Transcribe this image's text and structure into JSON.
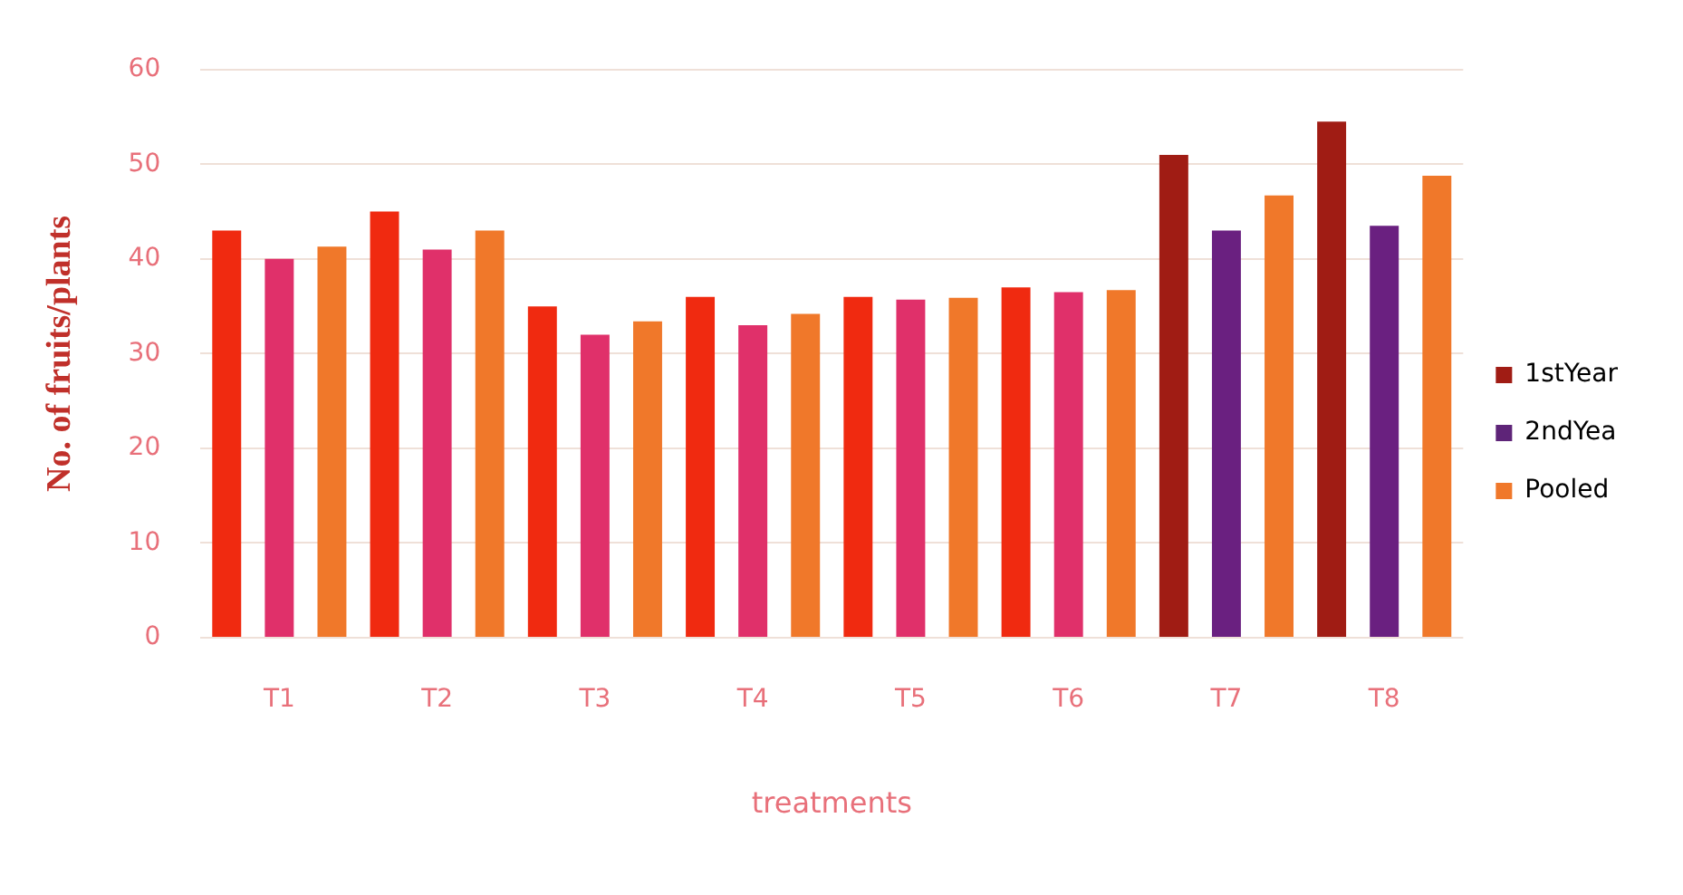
{
  "chart_data": {
    "type": "bar",
    "xlabel": "treatments",
    "ylabel": "No. of fruits/plants",
    "categories": [
      "T1",
      "T2",
      "T3",
      "T4",
      "T5",
      "T6",
      "T7",
      "T8"
    ],
    "series": [
      {
        "name": "1stYear",
        "color": "#a01c14",
        "colors": [
          "#f02a10",
          "#f02a10",
          "#f02a10",
          "#f02a10",
          "#f02a10",
          "#f02a10",
          "#a01c14",
          "#a01c14"
        ],
        "values": [
          43,
          45,
          35,
          36,
          36,
          37,
          51,
          54.5
        ]
      },
      {
        "name": "2ndYea",
        "color": "#5e2478",
        "colors": [
          "#e0306a",
          "#e0306a",
          "#e0306a",
          "#e0306a",
          "#e0306a",
          "#e0306a",
          "#6a2080",
          "#6a2080"
        ],
        "values": [
          40,
          41,
          32,
          33,
          35.7,
          36.5,
          43,
          43.5
        ]
      },
      {
        "name": "Pooled",
        "color": "#f0782a",
        "colors": [
          "#f0782a",
          "#f0782a",
          "#f0782a",
          "#f0782a",
          "#f0782a",
          "#f0782a",
          "#f0782a",
          "#f0782a"
        ],
        "values": [
          41.3,
          43,
          33.4,
          34.2,
          35.9,
          36.7,
          46.7,
          48.8
        ]
      }
    ],
    "ylim": [
      0,
      60
    ],
    "yticks": [
      0,
      10,
      20,
      30,
      40,
      50,
      60
    ],
    "grid": "y",
    "legend": "right"
  }
}
